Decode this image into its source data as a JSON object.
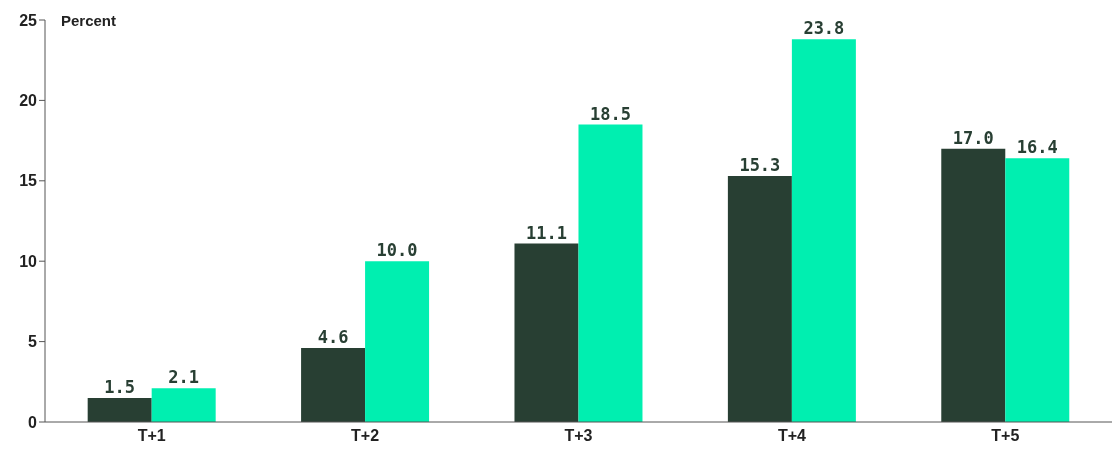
{
  "chart_data": {
    "type": "bar",
    "ylabel": "Percent",
    "categories": [
      "T+1",
      "T+2",
      "T+3",
      "T+4",
      "T+5"
    ],
    "series": [
      {
        "color": "#283f33",
        "values": [
          1.5,
          4.6,
          11.1,
          15.3,
          17.0
        ],
        "value_labels": [
          "1.5",
          "4.6",
          "11.1",
          "15.3",
          "17.0"
        ]
      },
      {
        "color": "#00efb0",
        "values": [
          2.1,
          10.0,
          18.5,
          23.8,
          16.4
        ],
        "value_labels": [
          "2.1",
          "10.0",
          "18.5",
          "23.8",
          "16.4"
        ]
      }
    ],
    "ylim": [
      0,
      25
    ],
    "yticks": [
      0,
      5,
      10,
      15,
      20,
      25
    ],
    "grid": false,
    "legend": false
  }
}
